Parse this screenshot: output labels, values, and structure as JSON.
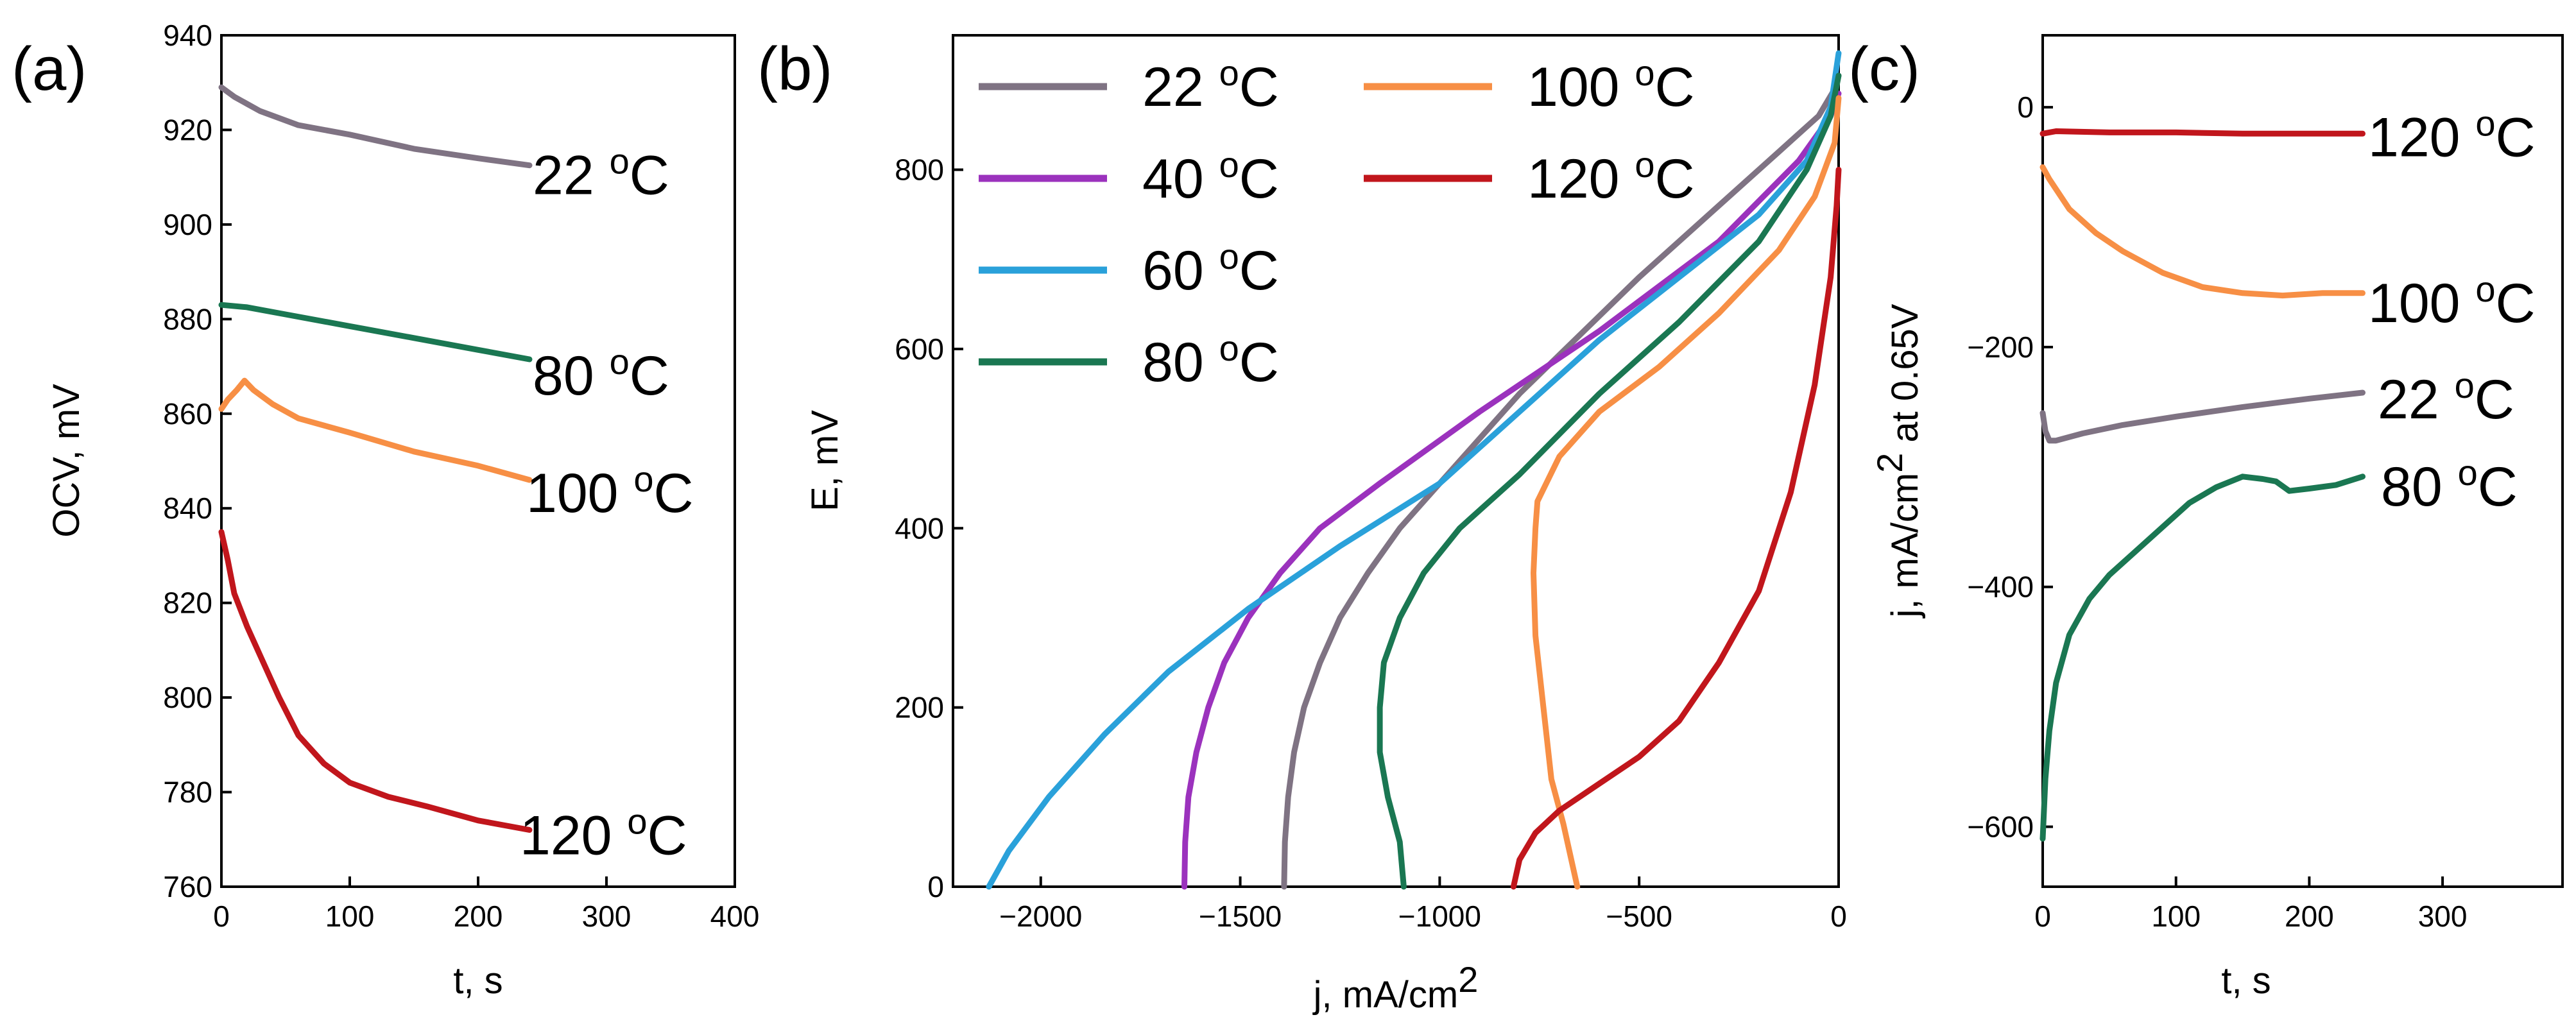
{
  "figure_labels": {
    "a": "(a)",
    "b": "(b)",
    "c": "(c)"
  },
  "colors": {
    "22": "#7f7383",
    "40": "#9b32bd",
    "60": "#2aa1da",
    "80": "#1a7752",
    "100": "#f78f45",
    "120": "#c1161c"
  },
  "chart_data": [
    {
      "id": "a",
      "type": "line",
      "xlabel": "t, s",
      "ylabel": "OCV, mV",
      "xlim": [
        0,
        400
      ],
      "ylim": [
        760,
        940
      ],
      "xticks": [
        0,
        100,
        200,
        300,
        400
      ],
      "yticks": [
        760,
        780,
        800,
        820,
        840,
        860,
        880,
        900,
        920,
        940
      ],
      "series": [
        {
          "name": "22 oC",
          "temp": "22",
          "label": "22",
          "x": [
            0,
            10,
            30,
            60,
            100,
            150,
            200,
            240
          ],
          "y": [
            929,
            927,
            924,
            921,
            919,
            916,
            914,
            912.5
          ]
        },
        {
          "name": "80 oC",
          "temp": "80",
          "label": "80",
          "x": [
            0,
            20,
            50,
            100,
            150,
            200,
            240
          ],
          "y": [
            883,
            882.5,
            881,
            878.5,
            876,
            873.5,
            871.5
          ]
        },
        {
          "name": "100 oC",
          "temp": "100",
          "label": "100",
          "x": [
            0,
            5,
            12,
            18,
            25,
            40,
            60,
            100,
            150,
            200,
            240
          ],
          "y": [
            861,
            863,
            865,
            867,
            865,
            862,
            859,
            856,
            852,
            849,
            846
          ]
        },
        {
          "name": "120 oC",
          "temp": "120",
          "label": "120",
          "x": [
            0,
            5,
            10,
            20,
            30,
            45,
            60,
            80,
            100,
            130,
            160,
            200,
            240
          ],
          "y": [
            835,
            829,
            822,
            815,
            809,
            800,
            792,
            786,
            782,
            779,
            777,
            774,
            772
          ]
        }
      ]
    },
    {
      "id": "b",
      "type": "line",
      "xlabel": "j, mA/cm",
      "xlabel_sup": "2",
      "ylabel": "E, mV",
      "xlim": [
        -2220,
        0
      ],
      "ylim": [
        0,
        950
      ],
      "xticks": [
        -2000,
        -1500,
        -1000,
        -500,
        0
      ],
      "yticks": [
        0,
        200,
        400,
        600,
        800
      ],
      "legend": [
        "22",
        "40",
        "60",
        "80",
        "100",
        "120"
      ],
      "series": [
        {
          "name": "22 oC",
          "temp": "22",
          "x": [
            -1390,
            -1388,
            -1380,
            -1365,
            -1340,
            -1300,
            -1250,
            -1180,
            -1100,
            -1000,
            -800,
            -500,
            -300,
            -150,
            -50,
            -10,
            0
          ],
          "y": [
            0,
            50,
            100,
            150,
            200,
            250,
            300,
            350,
            400,
            450,
            550,
            680,
            760,
            820,
            860,
            890,
            905
          ]
        },
        {
          "name": "40 oC",
          "temp": "40",
          "x": [
            -1640,
            -1638,
            -1630,
            -1610,
            -1580,
            -1540,
            -1480,
            -1400,
            -1300,
            -1150,
            -900,
            -600,
            -300,
            -100,
            -20,
            0
          ],
          "y": [
            0,
            50,
            100,
            150,
            200,
            250,
            300,
            350,
            400,
            450,
            530,
            620,
            720,
            810,
            860,
            885
          ]
        },
        {
          "name": "60 oC",
          "temp": "60",
          "x": [
            -2130,
            -2080,
            -1980,
            -1840,
            -1680,
            -1480,
            -1250,
            -1000,
            -800,
            -600,
            -400,
            -200,
            -80,
            -20,
            0
          ],
          "y": [
            0,
            40,
            100,
            170,
            240,
            310,
            380,
            450,
            530,
            610,
            680,
            750,
            810,
            870,
            930
          ]
        },
        {
          "name": "80 oC",
          "temp": "80",
          "x": [
            -1090,
            -1100,
            -1130,
            -1150,
            -1150,
            -1140,
            -1100,
            -1040,
            -950,
            -800,
            -600,
            -400,
            -200,
            -80,
            -20,
            0
          ],
          "y": [
            0,
            50,
            100,
            150,
            200,
            250,
            300,
            350,
            400,
            460,
            550,
            630,
            720,
            800,
            860,
            905
          ]
        },
        {
          "name": "100 oC",
          "temp": "100",
          "x": [
            -655,
            -670,
            -690,
            -720,
            -740,
            -760,
            -765,
            -760,
            -755,
            -700,
            -600,
            -450,
            -300,
            -150,
            -60,
            -10,
            0
          ],
          "y": [
            0,
            30,
            70,
            120,
            200,
            280,
            350,
            400,
            430,
            480,
            530,
            580,
            640,
            710,
            770,
            830,
            880
          ]
        },
        {
          "name": "120 oC",
          "temp": "120",
          "x": [
            -815,
            -800,
            -760,
            -700,
            -600,
            -500,
            -400,
            -300,
            -200,
            -120,
            -60,
            -20,
            -5,
            0
          ],
          "y": [
            0,
            30,
            60,
            85,
            115,
            145,
            185,
            250,
            330,
            440,
            560,
            680,
            760,
            800
          ]
        }
      ]
    },
    {
      "id": "c",
      "type": "line",
      "xlabel": "t, s",
      "ylabel": "j, mA/cm",
      "ylabel_sup": "2",
      "ylabel_suffix": " at 0.65V",
      "xlim": [
        0,
        390
      ],
      "ylim": [
        -650,
        60
      ],
      "xticks": [
        0,
        100,
        200,
        300
      ],
      "yticks": [
        -600,
        -400,
        -200,
        0
      ],
      "series": [
        {
          "name": "120 oC",
          "temp": "120",
          "label": "120",
          "x": [
            0,
            10,
            50,
            100,
            150,
            200,
            240
          ],
          "y": [
            -22,
            -20,
            -21,
            -21,
            -22,
            -22,
            -22
          ]
        },
        {
          "name": "100 oC",
          "temp": "100",
          "label": "100",
          "x": [
            0,
            5,
            20,
            40,
            60,
            90,
            120,
            150,
            180,
            210,
            240
          ],
          "y": [
            -50,
            -60,
            -85,
            -105,
            -120,
            -138,
            -150,
            -155,
            -157,
            -155,
            -155
          ]
        },
        {
          "name": "22 oC",
          "temp": "22",
          "label": "22",
          "x": [
            0,
            2,
            5,
            10,
            30,
            60,
            100,
            150,
            200,
            240
          ],
          "y": [
            -255,
            -270,
            -278,
            -278,
            -272,
            -265,
            -258,
            -250,
            -243,
            -238
          ]
        },
        {
          "name": "80 oC",
          "temp": "80",
          "label": "80",
          "x": [
            0,
            2,
            5,
            10,
            20,
            35,
            50,
            70,
            90,
            110,
            130,
            150,
            165,
            175,
            185,
            200,
            220,
            240
          ],
          "y": [
            -610,
            -560,
            -520,
            -480,
            -440,
            -410,
            -390,
            -370,
            -350,
            -330,
            -317,
            -308,
            -310,
            -312,
            -320,
            -318,
            -315,
            -308
          ]
        }
      ]
    }
  ]
}
